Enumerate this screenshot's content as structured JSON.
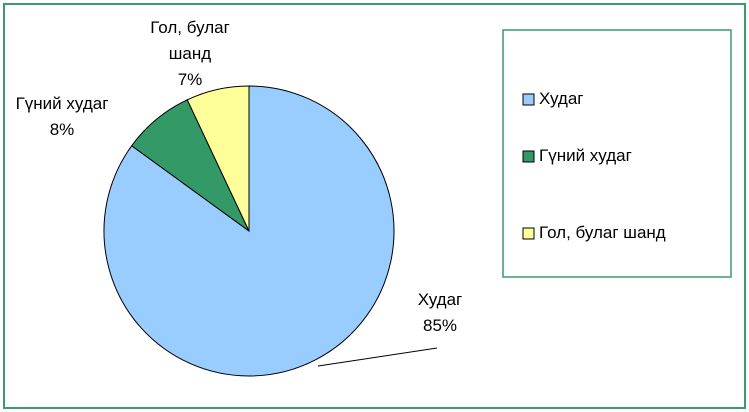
{
  "chart_data": {
    "type": "pie",
    "categories": [
      "Худаг",
      "Гүний худаг",
      "Гол, булаг шанд"
    ],
    "values": [
      85,
      8,
      7
    ],
    "value_labels": [
      "85%",
      "8%",
      "7%"
    ],
    "colors": [
      "#99ccff",
      "#339966",
      "#ffff99"
    ],
    "legend": "right"
  }
}
